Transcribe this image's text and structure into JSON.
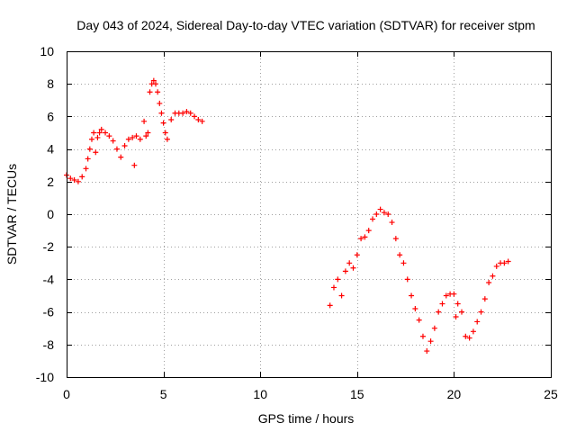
{
  "chart_data": {
    "type": "scatter",
    "title": "Day 043 of 2024, Sidereal Day-to-day VTEC variation (SDTVAR) for receiver stpm",
    "xlabel": "GPS time / hours",
    "ylabel": "SDTVAR / TECUs",
    "xlim": [
      0,
      25
    ],
    "ylim": [
      -10,
      10
    ],
    "xticks": [
      0,
      5,
      10,
      15,
      20,
      25
    ],
    "yticks": [
      -10,
      -8,
      -6,
      -4,
      -2,
      0,
      2,
      4,
      6,
      8,
      10
    ],
    "grid": true,
    "marker": "+",
    "color": "#ff0000",
    "series": [
      {
        "name": "SDTVAR",
        "points": [
          [
            0.0,
            2.4
          ],
          [
            0.2,
            2.2
          ],
          [
            0.4,
            2.1
          ],
          [
            0.6,
            2.0
          ],
          [
            0.8,
            2.3
          ],
          [
            1.0,
            2.8
          ],
          [
            1.1,
            3.4
          ],
          [
            1.2,
            4.0
          ],
          [
            1.3,
            4.6
          ],
          [
            1.4,
            5.0
          ],
          [
            1.5,
            3.8
          ],
          [
            1.6,
            4.7
          ],
          [
            1.7,
            5.0
          ],
          [
            1.8,
            5.2
          ],
          [
            2.0,
            5.0
          ],
          [
            2.2,
            4.8
          ],
          [
            2.4,
            4.5
          ],
          [
            2.6,
            4.0
          ],
          [
            2.8,
            3.5
          ],
          [
            3.0,
            4.2
          ],
          [
            3.2,
            4.6
          ],
          [
            3.4,
            4.7
          ],
          [
            3.5,
            3.0
          ],
          [
            3.6,
            4.8
          ],
          [
            3.8,
            4.6
          ],
          [
            4.0,
            5.7
          ],
          [
            4.1,
            4.8
          ],
          [
            4.2,
            5.0
          ],
          [
            4.3,
            7.5
          ],
          [
            4.4,
            8.0
          ],
          [
            4.5,
            8.2
          ],
          [
            4.6,
            8.0
          ],
          [
            4.7,
            7.5
          ],
          [
            4.8,
            6.8
          ],
          [
            4.9,
            6.2
          ],
          [
            5.0,
            5.6
          ],
          [
            5.1,
            5.0
          ],
          [
            5.2,
            4.6
          ],
          [
            5.4,
            5.8
          ],
          [
            5.6,
            6.2
          ],
          [
            5.8,
            6.2
          ],
          [
            6.0,
            6.2
          ],
          [
            6.2,
            6.3
          ],
          [
            6.4,
            6.2
          ],
          [
            6.6,
            6.0
          ],
          [
            6.8,
            5.8
          ],
          [
            7.0,
            5.7
          ],
          [
            13.6,
            -5.6
          ],
          [
            13.8,
            -4.5
          ],
          [
            14.0,
            -4.0
          ],
          [
            14.2,
            -5.0
          ],
          [
            14.4,
            -3.5
          ],
          [
            14.6,
            -3.0
          ],
          [
            14.8,
            -3.3
          ],
          [
            15.0,
            -2.5
          ],
          [
            15.2,
            -1.5
          ],
          [
            15.4,
            -1.4
          ],
          [
            15.6,
            -1.0
          ],
          [
            15.8,
            -0.3
          ],
          [
            16.0,
            0.0
          ],
          [
            16.2,
            0.3
          ],
          [
            16.4,
            0.1
          ],
          [
            16.6,
            0.0
          ],
          [
            16.8,
            -0.5
          ],
          [
            17.0,
            -1.5
          ],
          [
            17.2,
            -2.5
          ],
          [
            17.4,
            -3.0
          ],
          [
            17.6,
            -4.0
          ],
          [
            17.8,
            -5.0
          ],
          [
            18.0,
            -5.8
          ],
          [
            18.2,
            -6.5
          ],
          [
            18.4,
            -7.5
          ],
          [
            18.6,
            -8.4
          ],
          [
            18.8,
            -7.8
          ],
          [
            19.0,
            -7.0
          ],
          [
            19.2,
            -6.0
          ],
          [
            19.4,
            -5.5
          ],
          [
            19.6,
            -5.0
          ],
          [
            19.8,
            -4.9
          ],
          [
            20.0,
            -4.9
          ],
          [
            20.1,
            -6.3
          ],
          [
            20.2,
            -5.5
          ],
          [
            20.4,
            -6.0
          ],
          [
            20.6,
            -7.5
          ],
          [
            20.8,
            -7.6
          ],
          [
            21.0,
            -7.2
          ],
          [
            21.2,
            -6.6
          ],
          [
            21.4,
            -6.0
          ],
          [
            21.6,
            -5.2
          ],
          [
            21.8,
            -4.2
          ],
          [
            22.0,
            -3.8
          ],
          [
            22.2,
            -3.2
          ],
          [
            22.4,
            -3.0
          ],
          [
            22.6,
            -3.0
          ],
          [
            22.8,
            -2.9
          ]
        ]
      }
    ]
  }
}
